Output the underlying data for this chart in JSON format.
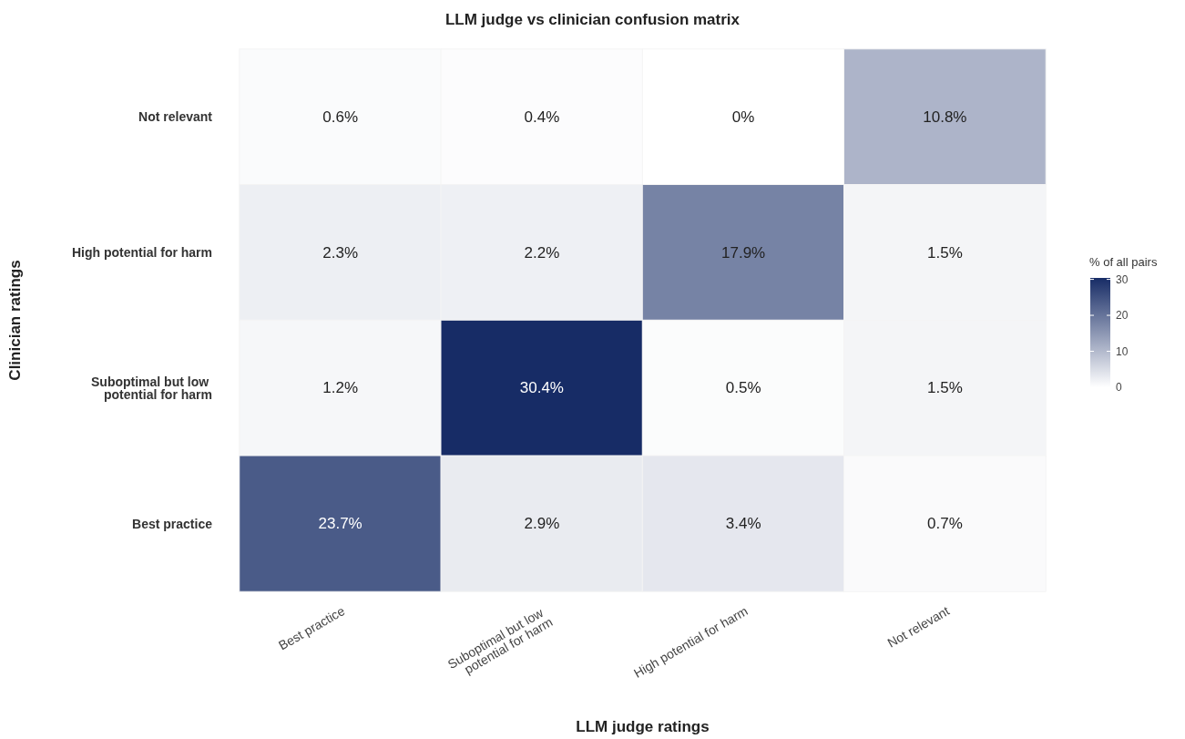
{
  "chart_data": {
    "type": "heatmap",
    "title": "LLM judge vs clinician confusion matrix",
    "xlabel": "LLM judge ratings",
    "ylabel": "Clinician ratings",
    "clabel": "% of all pairs",
    "categories": [
      "Best practice",
      "Suboptimal but low potential for harm",
      "High potential for harm",
      "Not relevant"
    ],
    "y_categories": [
      "Not relevant",
      "High potential for harm",
      "Suboptimal but low potential for harm",
      "Best practice"
    ],
    "cells": [
      [
        0.6,
        0.4,
        0,
        10.8
      ],
      [
        2.3,
        2.2,
        17.9,
        1.5
      ],
      [
        1.2,
        30.4,
        0.5,
        1.5
      ],
      [
        23.7,
        2.9,
        3.4,
        0.7
      ]
    ],
    "cell_labels": [
      [
        "0.6%",
        "0.4%",
        "0%",
        "10.8%"
      ],
      [
        "2.3%",
        "2.2%",
        "17.9%",
        "1.5%"
      ],
      [
        "1.2%",
        "30.4%",
        "0.5%",
        "1.5%"
      ],
      [
        "23.7%",
        "2.9%",
        "3.4%",
        "0.7%"
      ]
    ],
    "clim": [
      0,
      30.4
    ],
    "cticks": [
      0,
      10,
      20,
      30
    ]
  }
}
